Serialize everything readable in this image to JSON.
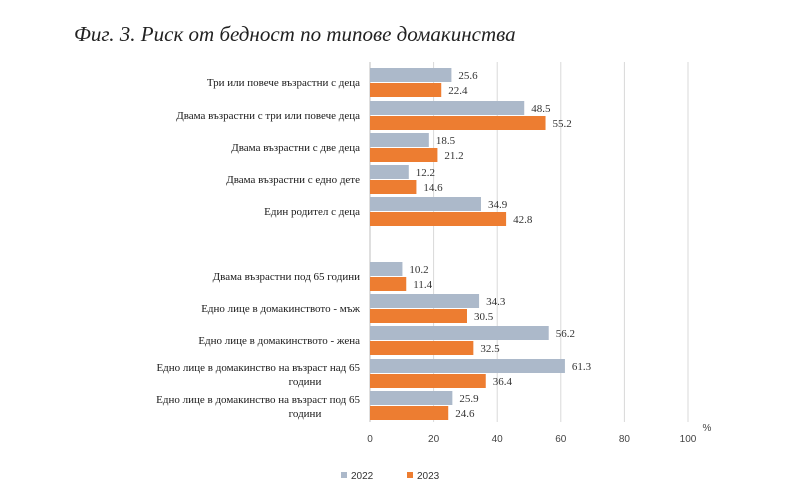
{
  "title": "Фиг. 3. Риск от бедност по типове домакинства",
  "colors": {
    "s2022": "#acb9ca",
    "s2023": "#ed7d31",
    "grid": "#d9d9d9",
    "axis": "#bfbfbf"
  },
  "chart_data": {
    "type": "bar",
    "orientation": "horizontal",
    "unit": "%",
    "xlim": [
      0,
      100
    ],
    "ticks": [
      0,
      20,
      40,
      60,
      80,
      100
    ],
    "grid": true,
    "legend_position": "bottom-left",
    "groups": [
      {
        "categories": [
          "Три или повече възрастни с деца",
          "Двама възрастни с три или повече деца",
          "Двама възрастни с две деца",
          "Двама възрастни с едно дете",
          "Един родител с деца"
        ]
      },
      {
        "categories": [
          "Двама възрастни под 65 години",
          "Едно лице в домакинството - мъж",
          "Едно лице в домакинството - жена",
          "Едно лице в домакинство на възраст над 65 години",
          "Едно лице в домакинство на възраст под 65 години"
        ]
      }
    ],
    "series": [
      {
        "name": "2022",
        "values": [
          25.6,
          48.5,
          18.5,
          12.2,
          34.9,
          10.2,
          34.3,
          56.2,
          61.3,
          25.9
        ]
      },
      {
        "name": "2023",
        "values": [
          22.4,
          55.2,
          21.2,
          14.6,
          42.8,
          11.4,
          30.5,
          32.5,
          36.4,
          24.6
        ]
      }
    ]
  }
}
